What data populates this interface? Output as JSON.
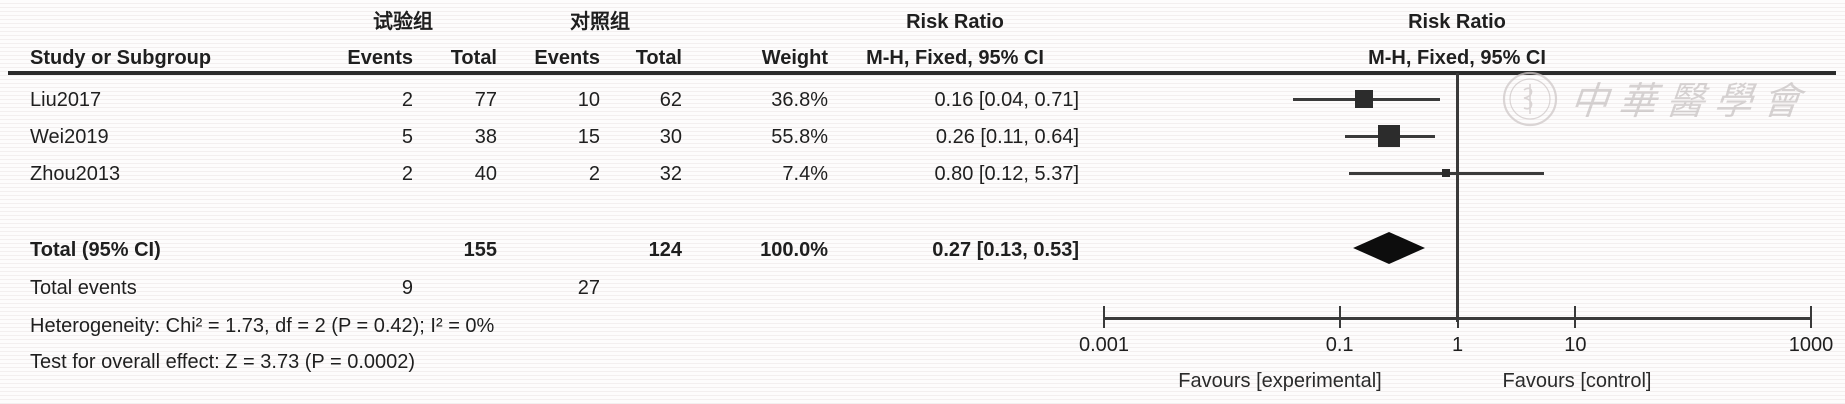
{
  "table": {
    "group1_header": "试验组",
    "group2_header": "对照组",
    "risk_ratio_header_left": "Risk Ratio",
    "method_header_left": "M-H, Fixed, 95% CI",
    "risk_ratio_header_plot": "Risk Ratio",
    "method_header_plot": "M-H, Fixed, 95% CI",
    "col_study": "Study or Subgroup",
    "col_events_exp": "Events",
    "col_total_exp": "Total",
    "col_events_ctrl": "Events",
    "col_total_ctrl": "Total",
    "col_weight": "Weight",
    "rows": [
      {
        "study": "Liu2017",
        "events_exp": "2",
        "total_exp": "77",
        "events_ctrl": "10",
        "total_ctrl": "62",
        "weight": "36.8%",
        "ci": "0.16 [0.04, 0.71]"
      },
      {
        "study": "Wei2019",
        "events_exp": "5",
        "total_exp": "38",
        "events_ctrl": "15",
        "total_ctrl": "30",
        "weight": "55.8%",
        "ci": "0.26 [0.11, 0.64]"
      },
      {
        "study": "Zhou2013",
        "events_exp": "2",
        "total_exp": "40",
        "events_ctrl": "2",
        "total_ctrl": "32",
        "weight": "7.4%",
        "ci": "0.80 [0.12, 5.37]"
      }
    ],
    "total_row": {
      "label": "Total (95% CI)",
      "total_exp": "155",
      "total_ctrl": "124",
      "weight": "100.0%",
      "ci": "0.27 [0.13, 0.53]"
    },
    "total_events": {
      "label": "Total events",
      "exp": "9",
      "ctrl": "27"
    },
    "footer": {
      "heterogeneity": "Heterogeneity: Chi² = 1.73, df = 2 (P = 0.42); I² = 0%",
      "overall_effect": "Test for overall effect: Z = 3.73 (P = 0.0002)"
    }
  },
  "watermark": {
    "text": "中華醫學會"
  },
  "chart_data": {
    "type": "forest",
    "effect_measure": "Risk Ratio",
    "method": "M-H, Fixed, 95% CI",
    "x_scale": "log",
    "x_range": [
      0.001,
      1000
    ],
    "x_ticks": [
      0.001,
      0.1,
      1,
      10,
      1000
    ],
    "no_effect_line": 1,
    "studies": [
      {
        "name": "Liu2017",
        "events_exp": 2,
        "total_exp": 77,
        "events_ctrl": 10,
        "total_ctrl": 62,
        "weight_pct": 36.8,
        "rr": 0.16,
        "ci_low": 0.04,
        "ci_high": 0.71
      },
      {
        "name": "Wei2019",
        "events_exp": 5,
        "total_exp": 38,
        "events_ctrl": 15,
        "total_ctrl": 30,
        "weight_pct": 55.8,
        "rr": 0.26,
        "ci_low": 0.11,
        "ci_high": 0.64
      },
      {
        "name": "Zhou2013",
        "events_exp": 2,
        "total_exp": 40,
        "events_ctrl": 2,
        "total_ctrl": 32,
        "weight_pct": 7.4,
        "rr": 0.8,
        "ci_low": 0.12,
        "ci_high": 5.37
      }
    ],
    "total": {
      "label": "Total (95% CI)",
      "total_exp": 155,
      "total_ctrl": 124,
      "weight_pct": 100.0,
      "rr": 0.27,
      "ci_low": 0.13,
      "ci_high": 0.53,
      "total_events_exp": 9,
      "total_events_ctrl": 27
    },
    "heterogeneity": {
      "chi2": 1.73,
      "df": 2,
      "p": 0.42,
      "i2_pct": 0
    },
    "overall_effect": {
      "z": 3.73,
      "p": 0.0002
    },
    "axis_labels": {
      "left": "Favours [experimental]",
      "right": "Favours [control]"
    },
    "marker_color": "#2c2c2c",
    "diamond_color": "#0d0d0d"
  }
}
